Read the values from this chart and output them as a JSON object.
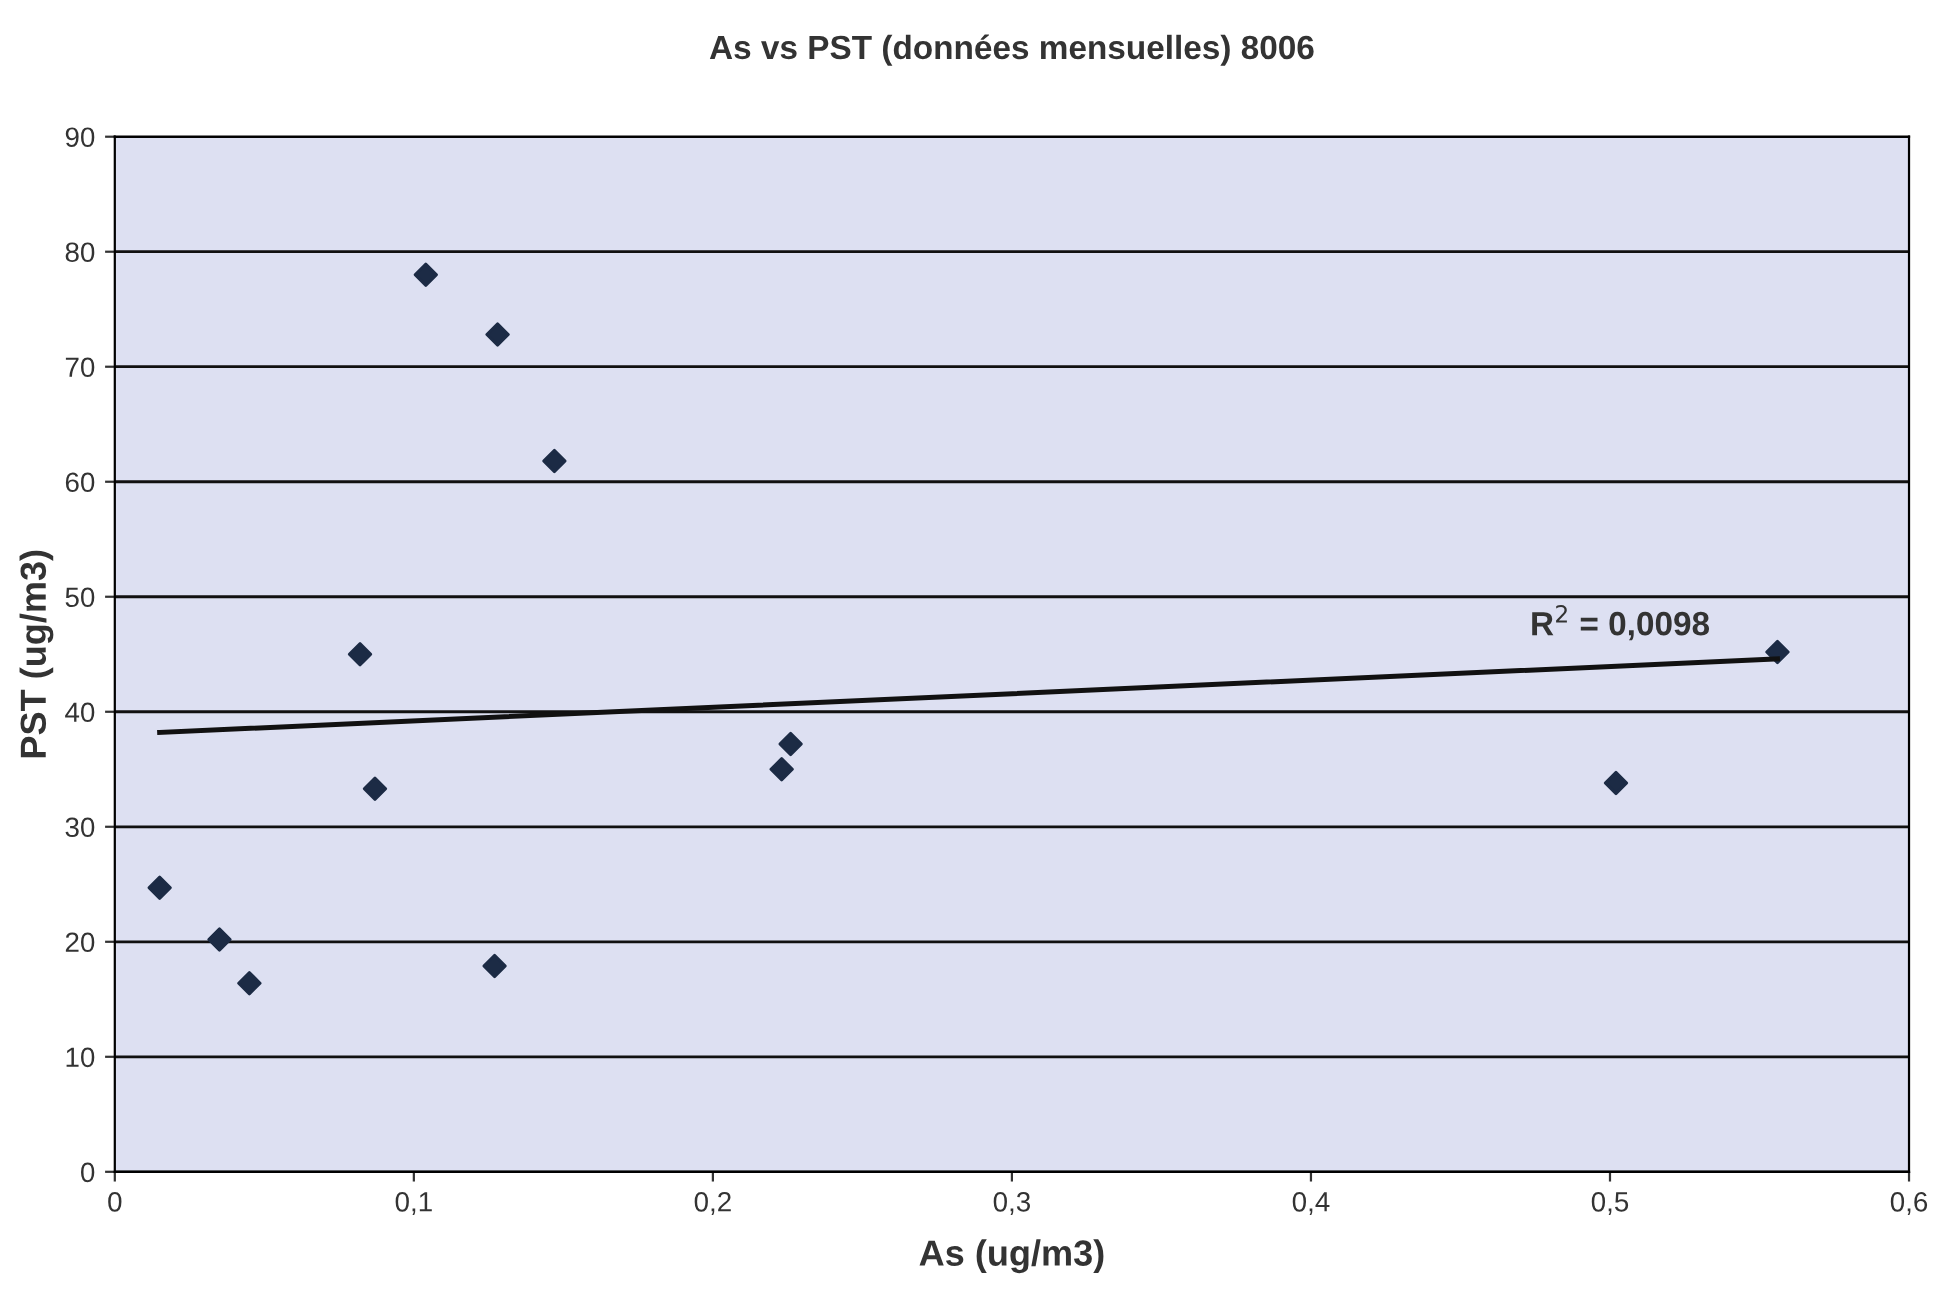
{
  "chart_data": {
    "type": "scatter",
    "title": "As vs PST (données mensuelles) 8006",
    "xlabel": "As (ug/m3)",
    "ylabel": "PST (ug/m3)",
    "xlim": [
      0,
      0.6
    ],
    "xticks": [
      {
        "value": 0,
        "label": "0"
      },
      {
        "value": 0.1,
        "label": "0,1"
      },
      {
        "value": 0.2,
        "label": "0,2"
      },
      {
        "value": 0.3,
        "label": "0,3"
      },
      {
        "value": 0.4,
        "label": "0,4"
      },
      {
        "value": 0.5,
        "label": "0,5"
      },
      {
        "value": 0.6,
        "label": "0,6"
      }
    ],
    "ylim": [
      0,
      90
    ],
    "yticks": [
      0,
      10,
      20,
      30,
      40,
      50,
      60,
      70,
      80,
      90
    ],
    "grid": "y",
    "series": [
      {
        "marker": "diamond",
        "color": "#1c2b45",
        "x": [
          0.015,
          0.035,
          0.045,
          0.082,
          0.087,
          0.104,
          0.128,
          0.147,
          0.127,
          0.223,
          0.226,
          0.502,
          0.556
        ],
        "values": [
          24.7,
          20.2,
          16.4,
          45,
          33.3,
          78,
          72.8,
          61.8,
          17.9,
          35,
          37.2,
          33.8,
          45.2
        ]
      },
      {
        "type": "line",
        "marker": "none",
        "line_style": "solid",
        "color": "#111111",
        "x": [
          0.015,
          0.556
        ],
        "values": [
          38.2,
          44.6
        ]
      }
    ],
    "annotations": [
      "R$^{2}$ = 0,0098"
    ]
  }
}
